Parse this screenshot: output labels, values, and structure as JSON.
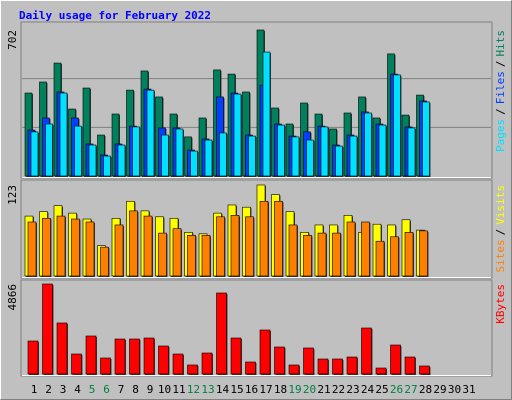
{
  "chart_data": [
    {
      "type": "bar",
      "title": "Daily usage for February 2022",
      "ylim": [
        0,
        702
      ],
      "yticks": [
        702
      ],
      "legend_separator": "/",
      "series": [
        {
          "name": "Hits",
          "color": "#00805c",
          "values": [
            399,
            452,
            543,
            322,
            423,
            197,
            298,
            413,
            505,
            380,
            298,
            188,
            279,
            510,
            490,
            404,
            702,
            327,
            250,
            351,
            298,
            226,
            303,
            380,
            279,
            587,
            293,
            389,
            null,
            null,
            null
          ]
        },
        {
          "name": "Files",
          "color": "#0040ff",
          "values": [
            221,
            279,
            404,
            279,
            154,
            101,
            154,
            240,
            418,
            231,
            231,
            125,
            178,
            380,
            399,
            197,
            437,
            250,
            192,
            212,
            240,
            149,
            197,
            308,
            250,
            490,
            236,
            361,
            null,
            null,
            null
          ]
        },
        {
          "name": "Pages",
          "color": "#00e0ff",
          "values": [
            212,
            250,
            399,
            240,
            149,
            96,
            149,
            236,
            413,
            197,
            226,
            120,
            173,
            207,
            394,
            192,
            596,
            245,
            188,
            173,
            236,
            144,
            192,
            303,
            245,
            486,
            231,
            356,
            null,
            null,
            null
          ]
        }
      ]
    },
    {
      "type": "bar",
      "ylim": [
        0,
        123
      ],
      "yticks": [
        123
      ],
      "legend_separator": "/",
      "series": [
        {
          "name": "Visits",
          "color": "#ffff00",
          "values": [
            81,
            87,
            95,
            85,
            77,
            41,
            78,
            101,
            88,
            80,
            78,
            59,
            57,
            85,
            96,
            93,
            123,
            110,
            87,
            59,
            69,
            69,
            82,
            59,
            70,
            69,
            76,
            62,
            null,
            null,
            null
          ]
        },
        {
          "name": "Sites",
          "color": "#ff8000",
          "values": [
            73,
            78,
            81,
            77,
            73,
            39,
            69,
            88,
            81,
            58,
            64,
            55,
            55,
            80,
            82,
            80,
            101,
            101,
            69,
            55,
            58,
            58,
            73,
            73,
            47,
            53,
            59,
            61,
            null,
            null,
            null
          ]
        }
      ]
    },
    {
      "type": "bar",
      "ylim": [
        0,
        4866
      ],
      "yticks": [
        4866
      ],
      "categories": [
        "1",
        "2",
        "3",
        "4",
        "5",
        "6",
        "7",
        "8",
        "9",
        "10",
        "11",
        "12",
        "13",
        "14",
        "15",
        "16",
        "17",
        "18",
        "19",
        "20",
        "21",
        "22",
        "23",
        "24",
        "25",
        "26",
        "27",
        "28",
        "29",
        "30",
        "31"
      ],
      "highlight_indices": [
        4,
        5,
        11,
        12,
        18,
        19,
        25,
        26
      ],
      "highlight_color": "#008040",
      "label_color": "#000000",
      "series": [
        {
          "name": "KBytes",
          "color": "#ff0000",
          "values": [
            1784,
            4866,
            2758,
            1081,
            2055,
            865,
            1892,
            1892,
            1946,
            1514,
            1081,
            487,
            1135,
            4380,
            1946,
            649,
            2379,
            1460,
            487,
            1406,
            811,
            811,
            919,
            2487,
            324,
            1568,
            919,
            433,
            null,
            null,
            null
          ]
        }
      ]
    }
  ]
}
